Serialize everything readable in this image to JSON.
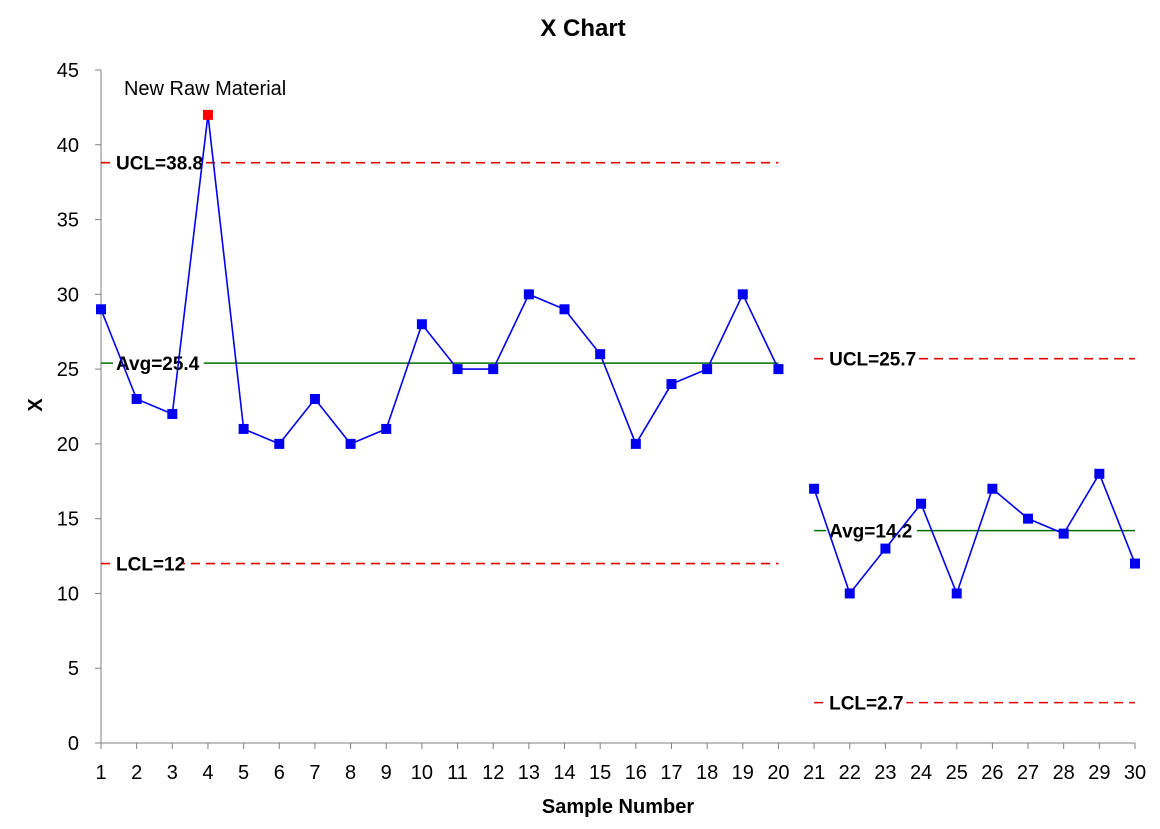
{
  "chart_data": {
    "type": "line",
    "title": "X Chart",
    "xlabel": "Sample Number",
    "ylabel": "X",
    "ylim": [
      0,
      45
    ],
    "yticks": [
      0,
      5,
      10,
      15,
      20,
      25,
      30,
      35,
      40,
      45
    ],
    "xticks": [
      1,
      2,
      3,
      4,
      5,
      6,
      7,
      8,
      9,
      10,
      11,
      12,
      13,
      14,
      15,
      16,
      17,
      18,
      19,
      20,
      21,
      22,
      23,
      24,
      25,
      26,
      27,
      28,
      29,
      30
    ],
    "grid": false,
    "series": [
      {
        "color": "#0000ee",
        "segments": [
          {
            "x": [
              1,
              2,
              3,
              4,
              5,
              6,
              7,
              8,
              9,
              10,
              11,
              12,
              13,
              14,
              15,
              16,
              17,
              18,
              19,
              20
            ],
            "values": [
              29,
              23,
              22,
              42,
              21,
              20,
              23,
              20,
              21,
              28,
              25,
              25,
              30,
              29,
              26,
              20,
              24,
              25,
              30,
              25
            ]
          },
          {
            "x": [
              21,
              22,
              23,
              24,
              25,
              26,
              27,
              28,
              29,
              30
            ],
            "values": [
              17,
              10,
              13,
              16,
              10,
              17,
              15,
              14,
              18,
              12
            ]
          }
        ],
        "out_of_control": [
          {
            "x": 4,
            "value": 42,
            "color": "#ff0000"
          }
        ]
      }
    ],
    "control_lines": [
      {
        "kind": "ucl",
        "value": 38.8,
        "label": "UCL=38.8",
        "range": [
          1,
          20
        ],
        "color": "#e00000",
        "style": "dashed"
      },
      {
        "kind": "avg",
        "value": 25.4,
        "label": "Avg=25.4",
        "range": [
          1,
          20
        ],
        "color": "#007000",
        "style": "solid"
      },
      {
        "kind": "lcl",
        "value": 12,
        "label": "LCL=12",
        "range": [
          1,
          20
        ],
        "color": "#e00000",
        "style": "dashed"
      },
      {
        "kind": "ucl",
        "value": 25.7,
        "label": "UCL=25.7",
        "range": [
          21,
          30
        ],
        "color": "#e00000",
        "style": "dashed"
      },
      {
        "kind": "avg",
        "value": 14.2,
        "label": "Avg=14.2",
        "range": [
          21,
          30
        ],
        "color": "#007000",
        "style": "solid"
      },
      {
        "kind": "lcl",
        "value": 2.7,
        "label": "LCL=2.7",
        "range": [
          21,
          30
        ],
        "color": "#e00000",
        "style": "dashed"
      }
    ],
    "annotations": [
      {
        "text": "New Raw Material",
        "x": 4,
        "value": 42
      }
    ]
  }
}
